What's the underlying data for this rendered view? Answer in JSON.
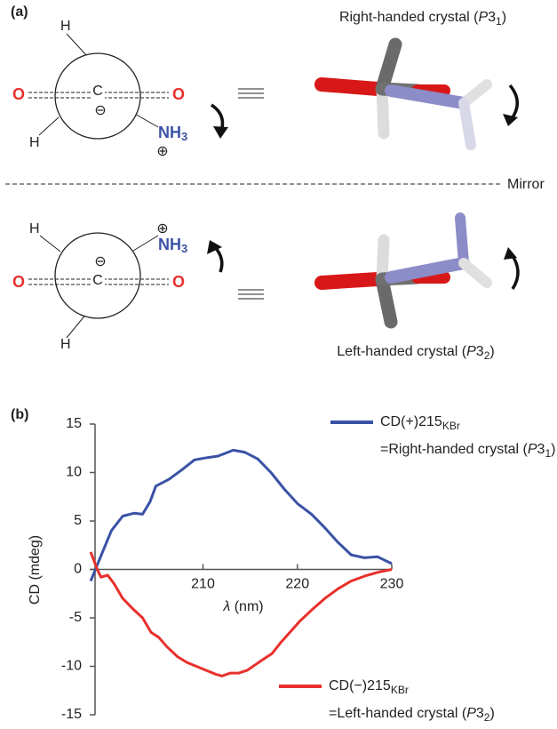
{
  "figure": {
    "label_a": "(a)",
    "label_b": "(b)",
    "mirror": "Mirror",
    "top": {
      "h_upper": "H",
      "h_lower": "H",
      "o_left": "O",
      "o_right": "O",
      "carbon": "C",
      "charge_minus": "⊖",
      "nh": "NH",
      "nh_sub": "3",
      "charge_plus": "⊕",
      "caption": {
        "text": "Right-handed crystal (",
        "italic": "P",
        "num": "3",
        "sub": "1",
        "close": ")"
      }
    },
    "bottom": {
      "h_upper": "H",
      "h_lower": "H",
      "o_left": "O",
      "o_right": "O",
      "carbon": "C",
      "charge_minus": "⊖",
      "nh": "NH",
      "nh_sub": "3",
      "charge_plus": "⊕",
      "caption": {
        "text": "Left-handed crystal (",
        "italic": "P",
        "num": "3",
        "sub": "2",
        "close": ")"
      }
    }
  },
  "chart_data": {
    "type": "line",
    "xlabel": {
      "italic": "λ",
      "text": " (nm)"
    },
    "ylabel": "CD (mdeg)",
    "xlim": [
      198,
      230
    ],
    "ylim": [
      -15,
      15
    ],
    "xticks": [
      210,
      220,
      230
    ],
    "yticks": [
      -15,
      -10,
      -5,
      0,
      5,
      10,
      15
    ],
    "series": [
      {
        "name": "CD(+)215",
        "name_sub": "KBr",
        "color": "#3a52a5",
        "description": {
          "text": "=Right-handed crystal (",
          "italic": "P",
          "num": "3",
          "sub": "1",
          "close": ")"
        },
        "x": [
          198.1,
          199.4,
          200.3,
          201.5,
          202.7,
          203.6,
          204.4,
          205.0,
          206.4,
          207.8,
          209.1,
          210.2,
          211.6,
          213.2,
          214.4,
          215.8,
          217.2,
          218.6,
          220.0,
          221.5,
          222.9,
          224.3,
          225.7,
          227.1,
          228.5,
          230.0
        ],
        "values": [
          -1.2,
          1.9,
          4.0,
          5.5,
          5.8,
          5.7,
          7.0,
          8.6,
          9.3,
          10.3,
          11.3,
          11.5,
          11.7,
          12.3,
          12.1,
          11.4,
          10.0,
          8.3,
          6.8,
          5.7,
          4.3,
          2.8,
          1.5,
          1.2,
          1.3,
          0.6
        ]
      },
      {
        "name": "CD(−)215",
        "name_sub": "KBr",
        "color": "#e8302c",
        "description": {
          "text": "=Left-handed crystal (",
          "italic": "P",
          "num": "3",
          "sub": "2",
          "close": ")"
        },
        "x": [
          198.1,
          198.8,
          199.2,
          199.9,
          200.6,
          201.5,
          202.5,
          203.6,
          204.5,
          205.3,
          206.2,
          207.3,
          208.3,
          209.3,
          210.3,
          211.3,
          212.0,
          212.9,
          213.8,
          214.7,
          215.6,
          216.5,
          217.3,
          218.2,
          219.2,
          220.3,
          221.5,
          222.9,
          224.3,
          225.7,
          227.1,
          228.5,
          230.0
        ],
        "values": [
          1.8,
          0.0,
          -0.8,
          -0.6,
          -1.5,
          -3.0,
          -4.0,
          -5.0,
          -6.5,
          -7.0,
          -8.0,
          -9.0,
          -9.6,
          -10.0,
          -10.4,
          -10.8,
          -11.0,
          -10.7,
          -10.7,
          -10.4,
          -9.8,
          -9.2,
          -8.7,
          -7.6,
          -6.5,
          -5.3,
          -4.2,
          -3.0,
          -2.0,
          -1.2,
          -0.7,
          -0.3,
          0
        ]
      }
    ]
  }
}
